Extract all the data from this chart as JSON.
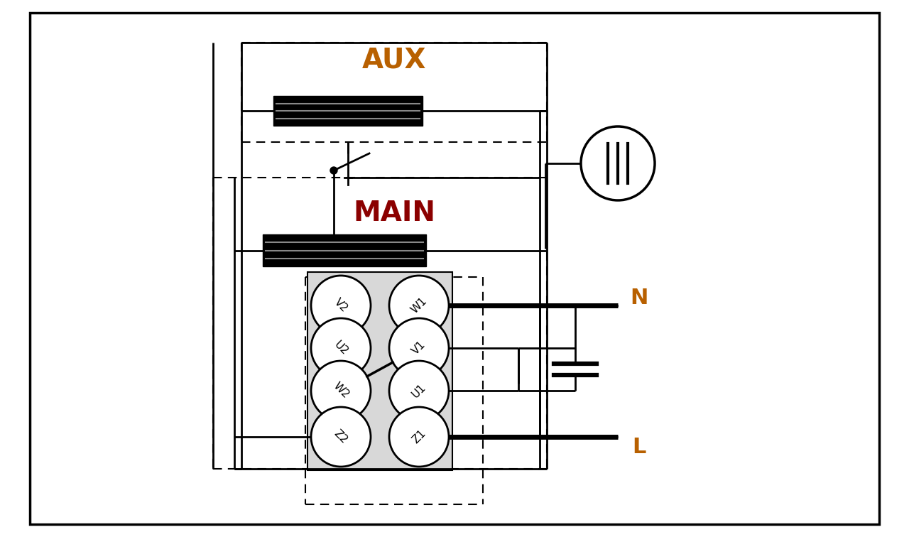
{
  "bg_color": "#ffffff",
  "aux_color": "#B86000",
  "main_color": "#8B0000",
  "N_color": "#B86000",
  "L_color": "#B86000",
  "aux_text": "AUX",
  "main_text": "MAIN",
  "N_text": "N",
  "L_text": "L",
  "terminal_right": [
    "W1",
    "V1",
    "U1",
    "Z1"
  ],
  "terminal_left": [
    "V2",
    "U2",
    "W2",
    "Z2"
  ],
  "lw": 2.0,
  "dlw": 1.5,
  "thick_lw": 5.0
}
